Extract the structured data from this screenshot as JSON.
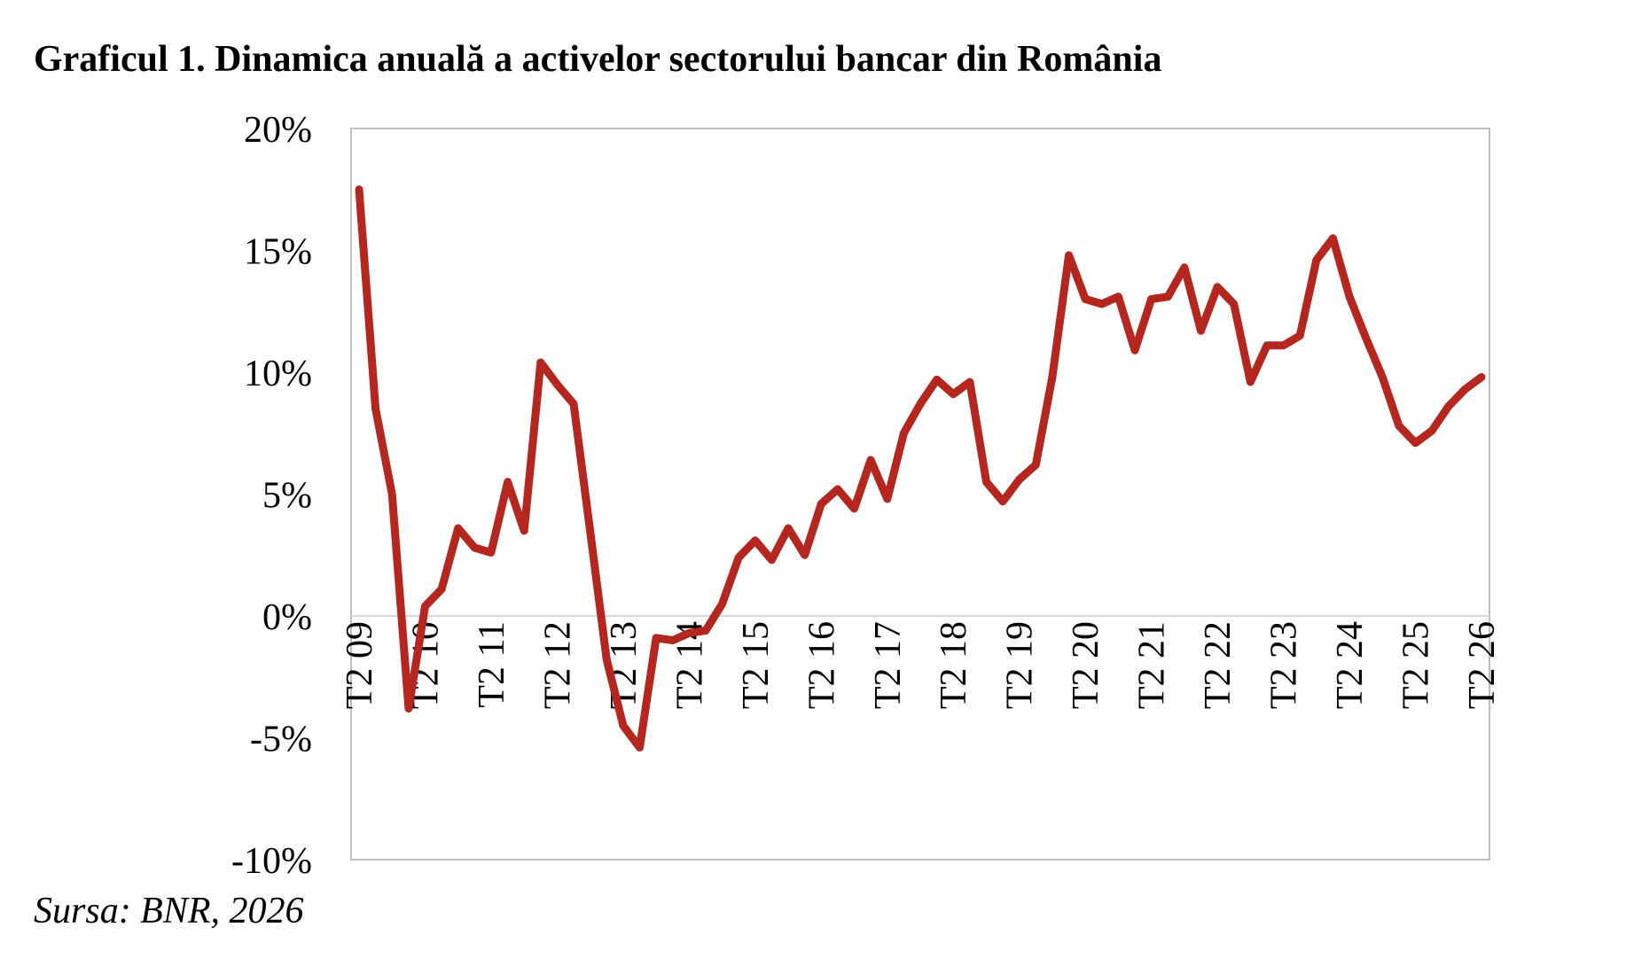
{
  "title": "Graficul 1. Dinamica anuală a activelor sectorului bancar din România",
  "source": "Sursa: BNR, 2026",
  "colors": {
    "line": "#B5261E",
    "frame": "#BFBFBF",
    "zero_line": "#D9D9D9"
  },
  "chart_data": {
    "type": "line",
    "title": "Graficul 1. Dinamica anuală a activelor sectorului bancar din România",
    "xlabel": "",
    "ylabel": "",
    "ylim": [
      -0.1,
      0.2
    ],
    "yticks": [
      -0.1,
      -0.05,
      0,
      0.05,
      0.1,
      0.15,
      0.2
    ],
    "ytick_labels": [
      "-10%",
      "-5%",
      "0%",
      "5%",
      "10%",
      "15%",
      "20%"
    ],
    "x_tick_labels": [
      "T2 09",
      "T2 10",
      "T2 11",
      "T2 12",
      "T2 13",
      "T2 14",
      "T2 15",
      "T2 16",
      "T2 17",
      "T2 18",
      "T2 19",
      "T2 20",
      "T2 21",
      "T2 22",
      "T2 23",
      "T2 24",
      "T2 25",
      "T2 26"
    ],
    "x_tick_every": 4,
    "grid": false,
    "legend": "none",
    "series": [
      {
        "values": [
          0.175,
          0.085,
          0.05,
          -0.038,
          0.004,
          0.011,
          0.036,
          0.028,
          0.026,
          0.055,
          0.035,
          0.104,
          0.095,
          0.087,
          0.035,
          -0.018,
          -0.045,
          -0.054,
          -0.009,
          -0.01,
          -0.007,
          -0.006,
          0.005,
          0.024,
          0.031,
          0.023,
          0.036,
          0.025,
          0.046,
          0.052,
          0.044,
          0.064,
          0.048,
          0.075,
          0.087,
          0.097,
          0.091,
          0.096,
          0.055,
          0.047,
          0.056,
          0.062,
          0.098,
          0.148,
          0.13,
          0.128,
          0.131,
          0.109,
          0.13,
          0.131,
          0.143,
          0.117,
          0.135,
          0.128,
          0.096,
          0.111,
          0.111,
          0.115,
          0.146,
          0.155,
          0.131,
          0.114,
          0.098,
          0.078,
          0.071,
          0.076,
          0.086,
          0.093,
          0.098
        ]
      }
    ]
  }
}
